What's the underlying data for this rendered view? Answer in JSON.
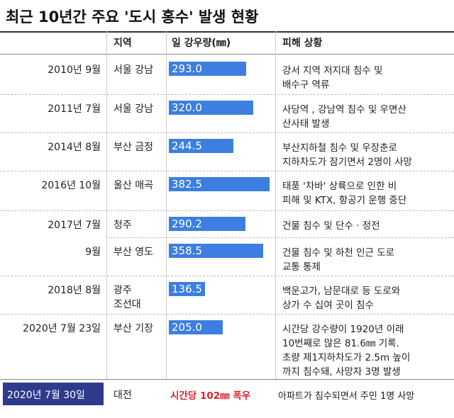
{
  "title": "최근 10년간 주요 '도시 홍수' 발생 현황",
  "table": {
    "columns": [
      "지역",
      "일 강우량(㎜)",
      "피해 상황"
    ],
    "rows": [
      {
        "date": "2010년 9월",
        "region": [
          "서울 강남"
        ],
        "rainfall": {
          "value": 293,
          "label": "293.0"
        },
        "damage": [
          "강서 지역 저지대 침수 및",
          "배수구 역류"
        ]
      },
      {
        "date": "2011년 7월",
        "region": [
          "서울 강남"
        ],
        "rainfall": {
          "value": 320,
          "label": "320.0"
        },
        "damage": [
          "사당역 , 강남역 침수 및 우면산",
          "산사태 발생"
        ]
      },
      {
        "date": "2014년 8월",
        "region": [
          "부산 금정"
        ],
        "rainfall": {
          "value": 244.5,
          "label": "244.5"
        },
        "damage": [
          "부산지하철 침수 및 우장춘로",
          "지하차도가 잠기면서 2명이 사망"
        ]
      },
      {
        "date": "2016년 10월",
        "region": [
          "울산 매곡"
        ],
        "rainfall": {
          "value": 382.5,
          "label": "382.5"
        },
        "damage": [
          "태풍 '차바' 상륙으로 인한 비",
          "피해 및 KTX, 항공기 운행 중단"
        ]
      },
      {
        "date": "2017년 7월",
        "region": [
          "청주"
        ],
        "rainfall": {
          "value": 290.2,
          "label": "290.2"
        },
        "damage": [
          "건물 침수 및 단수 · 정전"
        ]
      },
      {
        "date": "9월",
        "region": [
          "부산 영도"
        ],
        "rainfall": {
          "value": 358.5,
          "label": "358.5"
        },
        "damage": [
          "건물 침수 및 하천 인근 도로",
          "교통 통제"
        ]
      },
      {
        "date": "2018년 8월",
        "region": [
          "광주",
          "조선대"
        ],
        "rainfall": {
          "value": 136.5,
          "label": "136.5"
        },
        "damage": [
          "백운고가, 남문대로 등 도로와",
          "상가 수 십여 곳이 침수"
        ]
      },
      {
        "date": "2020년 7월 23일",
        "region": [
          "부산 기장"
        ],
        "rainfall": {
          "value": 205,
          "label": "205.0"
        },
        "damage": [
          "시간당 강수량이 1920년 이래",
          "10번째로 많은 81.6㎜ 기록.",
          "초량 제1지하차도가 2.5m 높이",
          "까지 침수돼, 사망자 3명 발생"
        ]
      }
    ],
    "last_row": {
      "date": "2020년 7월 30일",
      "region": "대전",
      "rainfall": "시간당 102㎜ 폭우",
      "damage": "아파트가 침수되면서 주민 1명 사망"
    }
  }
}
